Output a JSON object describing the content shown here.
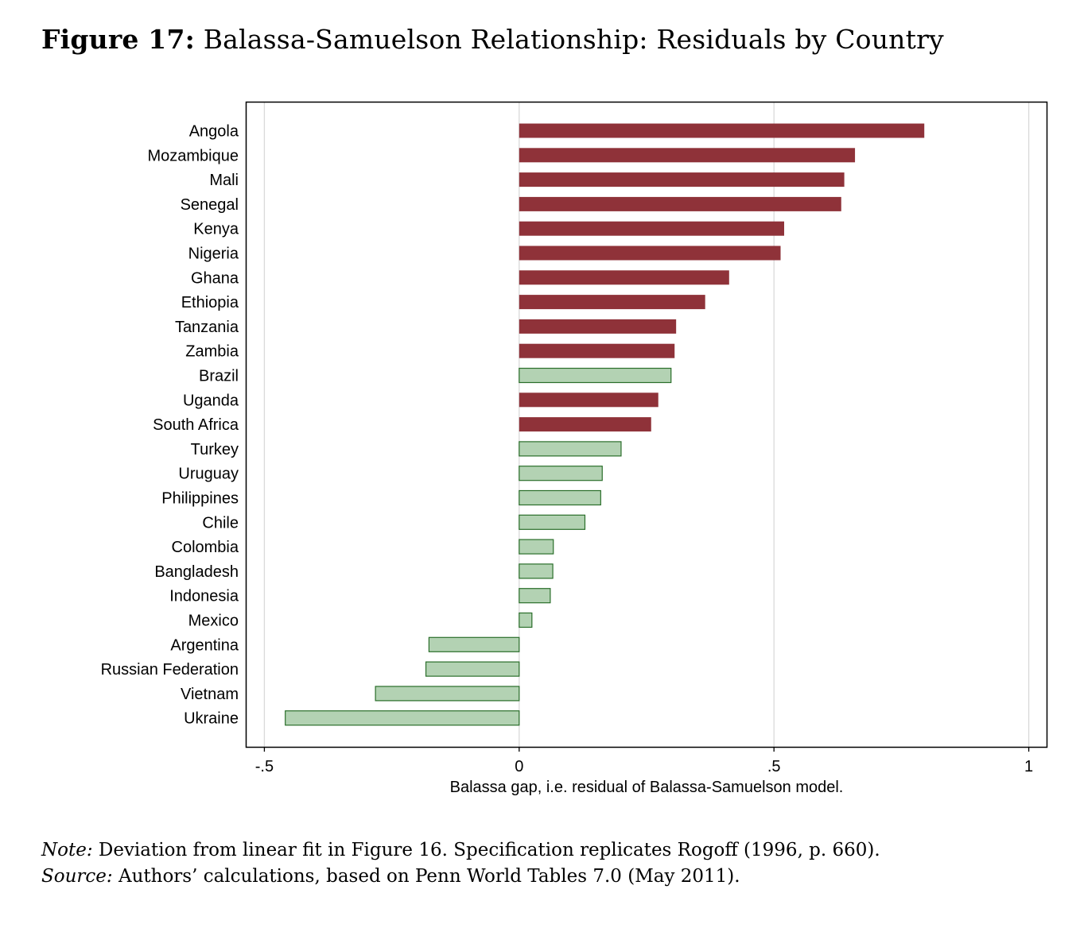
{
  "figure": {
    "label": "Figure 17:",
    "title": "Balassa-Samuelson Relationship: Residuals by Country"
  },
  "note": {
    "label": "Note:",
    "text": "Deviation from linear fit in Figure 16. Specification replicates Rogoff (1996, p. 660)."
  },
  "source": {
    "label": "Source:",
    "text": "Authors’ calculations, based on Penn World Tables 7.0 (May 2011)."
  },
  "colors": {
    "red_fill": "#8f3239",
    "green_fill": "#b3d2b3",
    "green_stroke": "#2a6e2a",
    "grid": "#d9d9d9",
    "frame": "#000000"
  },
  "chart_data": {
    "type": "bar",
    "orientation": "horizontal",
    "title": "",
    "xlabel": "Balassa gap, i.e. residual of Balassa-Samuelson model.",
    "ylabel": "",
    "xlim": [
      -0.535,
      1.035
    ],
    "xticks": [
      -0.5,
      0,
      0.5,
      1
    ],
    "xtick_labels": [
      "-.5",
      "0",
      ".5",
      "1"
    ],
    "grid": "vertical gridlines at x ticks",
    "categories": [
      "Angola",
      "Mozambique",
      "Mali",
      "Senegal",
      "Kenya",
      "Nigeria",
      "Ghana",
      "Ethiopia",
      "Tanzania",
      "Zambia",
      "Brazil",
      "Uganda",
      "South Africa",
      "Turkey",
      "Uruguay",
      "Philippines",
      "Chile",
      "Colombia",
      "Bangladesh",
      "Indonesia",
      "Mexico",
      "Argentina",
      "Russian Federation",
      "Vietnam",
      "Ukraine"
    ],
    "values": [
      0.795,
      0.659,
      0.638,
      0.632,
      0.52,
      0.513,
      0.412,
      0.365,
      0.308,
      0.305,
      0.298,
      0.273,
      0.259,
      0.2,
      0.163,
      0.16,
      0.129,
      0.067,
      0.066,
      0.061,
      0.025,
      -0.177,
      -0.183,
      -0.282,
      -0.459
    ],
    "group": [
      "red",
      "red",
      "red",
      "red",
      "red",
      "red",
      "red",
      "red",
      "red",
      "red",
      "green",
      "red",
      "red",
      "green",
      "green",
      "green",
      "green",
      "green",
      "green",
      "green",
      "green",
      "green",
      "green",
      "green",
      "green"
    ]
  }
}
